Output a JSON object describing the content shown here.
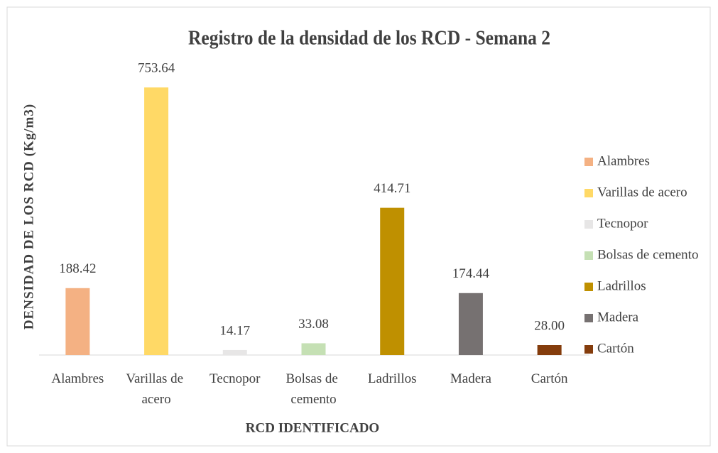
{
  "chart_data": {
    "type": "bar",
    "title": "Registro de la densidad de los RCD - Semana 2",
    "x_label": "RCD IDENTIFICADO",
    "y_label": "DENSIDAD DE LOS RCD (Kg/m3)",
    "categories": [
      "Alambres",
      "Varillas de acero",
      "Tecnopor",
      "Bolsas de cemento",
      "Ladrillos",
      "Madera",
      "Cartón"
    ],
    "values": [
      188.42,
      753.64,
      14.17,
      33.08,
      414.71,
      174.44,
      28
    ],
    "value_labels": [
      "188.42",
      "753.64",
      "14.17",
      "33.08",
      "414.71",
      "174.44",
      "28.00"
    ],
    "colors": [
      "#f4b183",
      "#ffd966",
      "#e7e6e6",
      "#c5e0b4",
      "#bf9000",
      "#767171",
      "#843c0c"
    ],
    "ylim": [
      0,
      800
    ],
    "legend": "right"
  }
}
